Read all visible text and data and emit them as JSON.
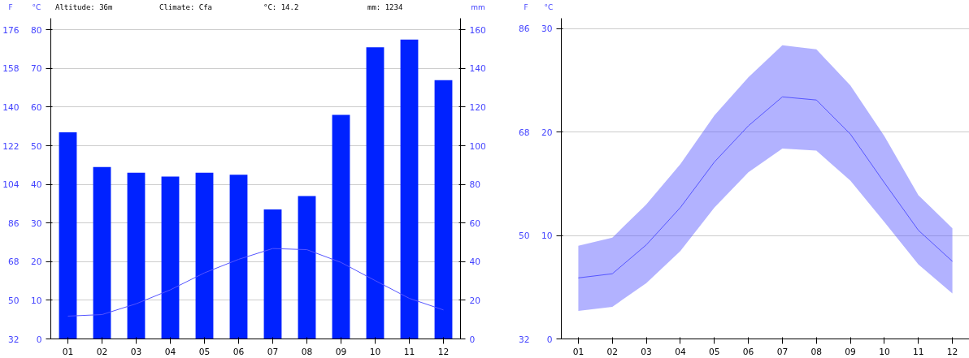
{
  "chart_data": [
    {
      "type": "bar",
      "categories": [
        "01",
        "02",
        "03",
        "04",
        "05",
        "06",
        "07",
        "08",
        "09",
        "10",
        "11",
        "12"
      ],
      "annotations": [
        "Altitude: 36m",
        "Climate: Cfa",
        "°C: 14.2",
        "mm: 1234"
      ],
      "ylabel": "°C",
      "y2label": "mm",
      "y3label": "F",
      "ylim": [
        0,
        83
      ],
      "yticks": [
        0,
        10,
        20,
        30,
        40,
        50,
        60,
        70,
        80
      ],
      "y2lim": [
        0,
        166
      ],
      "y2ticks": [
        0,
        20,
        40,
        60,
        80,
        100,
        120,
        140,
        160
      ],
      "y3lim": [
        32,
        181.4
      ],
      "y3ticks": [
        32,
        50,
        68,
        86,
        104,
        122,
        140,
        158,
        176
      ],
      "grid": "y",
      "series": [
        {
          "axis": "y2",
          "color": "#0022ff",
          "values": [
            107,
            89,
            86,
            84,
            86,
            85,
            67,
            74,
            116,
            151,
            155,
            134
          ]
        },
        {
          "type": "line",
          "axis": "y",
          "color": "#5555ff",
          "values": [
            5.9,
            6.3,
            9.1,
            12.7,
            17.1,
            20.6,
            23.4,
            23.1,
            19.8,
            15.1,
            10.5,
            7.5
          ]
        }
      ]
    },
    {
      "type": "line",
      "categories": [
        "01",
        "02",
        "03",
        "04",
        "05",
        "06",
        "07",
        "08",
        "09",
        "10",
        "11",
        "12"
      ],
      "ylabel": "°C",
      "y3label": "F",
      "ylim": [
        0,
        31
      ],
      "yticks": [
        0,
        10,
        20,
        30
      ],
      "y3lim": [
        32,
        87.8
      ],
      "y3ticks": [
        32,
        50,
        68,
        86
      ],
      "grid": "y",
      "series": [
        {
          "axis": "y",
          "color": "#5555ff",
          "values": [
            5.9,
            6.3,
            9.1,
            12.7,
            17.1,
            20.6,
            23.4,
            23.1,
            19.8,
            15.1,
            10.5,
            7.5
          ],
          "lower": [
            2.7,
            3.1,
            5.4,
            8.5,
            12.7,
            16.1,
            18.4,
            18.2,
            15.3,
            11.3,
            7.2,
            4.4
          ],
          "upper": [
            9.0,
            9.8,
            13.0,
            16.9,
            21.6,
            25.3,
            28.4,
            28.0,
            24.5,
            19.6,
            13.9,
            10.7
          ]
        }
      ]
    }
  ]
}
